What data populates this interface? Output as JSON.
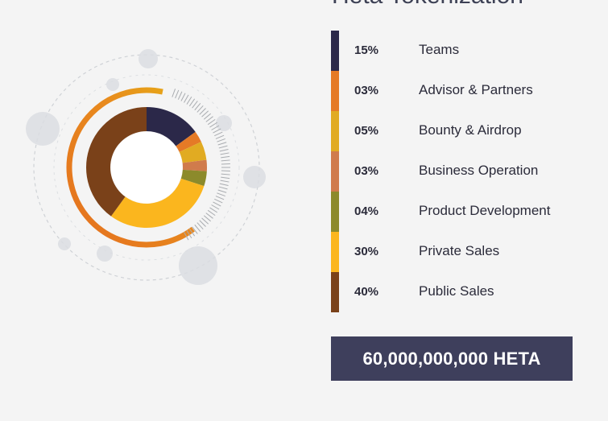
{
  "title": "Heta Tokenization",
  "total_supply": "60,000,000,000 HETA",
  "chart_data": {
    "type": "pie",
    "categories": [
      "Teams",
      "Advisor & Partners",
      "Bounty & Airdrop",
      "Business Operation",
      "Product Development",
      "Private Sales",
      "Public Sales"
    ],
    "values": [
      15,
      3,
      5,
      3,
      4,
      30,
      40
    ],
    "percent_labels": [
      "15%",
      "03%",
      "05%",
      "03%",
      "04%",
      "30%",
      "40%"
    ],
    "colors": [
      "#2b2849",
      "#e57a26",
      "#e1ab22",
      "#d07b4c",
      "#8c8a2b",
      "#fbb61e",
      "#7a4119"
    ]
  }
}
